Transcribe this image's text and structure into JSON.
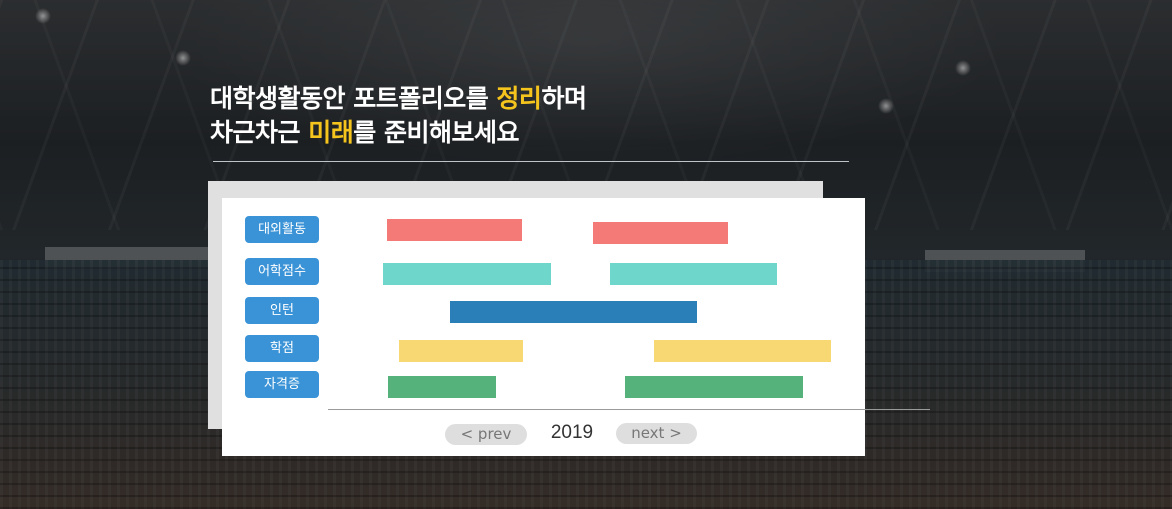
{
  "headline": {
    "line1_before": "대학생활동안 포트폴리오를 ",
    "line1_highlight": "정리",
    "line1_after": "하며",
    "line2_before": "차근차근 ",
    "line2_highlight": "미래",
    "line2_after": "를 준비해보세요"
  },
  "colors": {
    "accent": "#f5c51e",
    "label_bg": "#3a93d6",
    "activity": "#f47a77",
    "language": "#6fd6cb",
    "intern": "#2b7fb8",
    "grade": "#f7d872",
    "certificate": "#56b27b"
  },
  "timeline": {
    "categories": [
      {
        "label": "대외활동",
        "color": "#f47a77"
      },
      {
        "label": "어학점수",
        "color": "#6fd6cb"
      },
      {
        "label": "인턴",
        "color": "#2b7fb8"
      },
      {
        "label": "학점",
        "color": "#f7d872"
      },
      {
        "label": "자격증",
        "color": "#56b27b"
      }
    ]
  },
  "nav": {
    "prev_label": "< prev",
    "year": "2019",
    "next_label": "next >"
  }
}
